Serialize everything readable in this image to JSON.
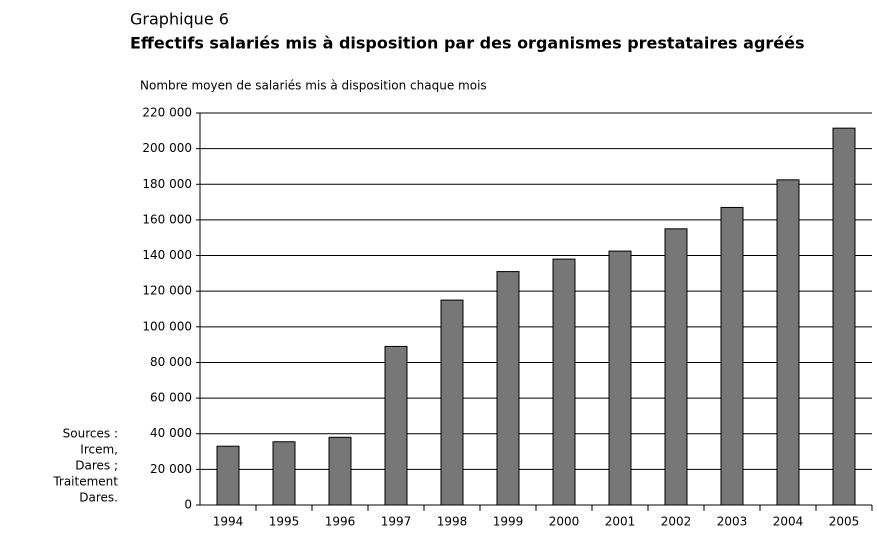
{
  "chart_data": {
    "type": "bar",
    "subtitle": "Graphique 6",
    "title": "Effectifs salariés mis à disposition par des organismes prestataires agréés",
    "y_label": "Nombre moyen de salariés mis à disposition chaque mois",
    "source": [
      "Sources :",
      "Ircem,",
      "Dares ;",
      "Traitement",
      "Dares."
    ],
    "categories": [
      "1994",
      "1995",
      "1996",
      "1997",
      "1998",
      "1999",
      "2000",
      "2001",
      "2002",
      "2003",
      "2004",
      "2005"
    ],
    "values": [
      33000,
      35500,
      38000,
      89000,
      115000,
      131000,
      138000,
      142500,
      155000,
      167000,
      182500,
      211500
    ],
    "color": "#777777",
    "ylim": [
      0,
      220000
    ],
    "yticks": [
      0,
      {
        "value": 20000,
        "label": "20 000"
      },
      {
        "value": 40000,
        "label": "40 000"
      },
      {
        "value": 60000,
        "label": "60 000"
      },
      {
        "value": 80000,
        "label": "80 000"
      },
      {
        "value": 100000,
        "label": "100 000"
      },
      {
        "value": 120000,
        "label": "120 000"
      },
      {
        "value": 140000,
        "label": "140 000"
      },
      {
        "value": 160000,
        "label": "160 000"
      },
      {
        "value": 180000,
        "label": "180 000"
      },
      {
        "value": 200000,
        "label": "200 000"
      },
      {
        "value": 220000,
        "label": "220 000"
      }
    ],
    "grid": true
  }
}
